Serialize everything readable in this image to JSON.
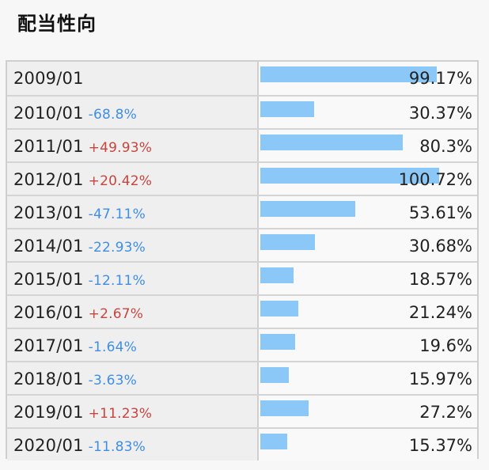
{
  "title": "配当性向",
  "chart_data": {
    "type": "bar",
    "orientation": "horizontal",
    "title": "配当性向",
    "categories": [
      "2009/01",
      "2010/01",
      "2011/01",
      "2012/01",
      "2013/01",
      "2014/01",
      "2015/01",
      "2016/01",
      "2017/01",
      "2018/01",
      "2019/01",
      "2020/01"
    ],
    "values": [
      99.17,
      30.37,
      80.3,
      100.72,
      53.61,
      30.68,
      18.57,
      21.24,
      19.6,
      15.97,
      27.2,
      15.37
    ],
    "value_labels": [
      "99.17%",
      "30.37%",
      "80.3%",
      "100.72%",
      "53.61%",
      "30.68%",
      "18.57%",
      "21.24%",
      "19.6%",
      "15.97%",
      "27.2%",
      "15.37%"
    ],
    "changes": [
      "",
      "-68.8%",
      "+49.93%",
      "+20.42%",
      "-47.11%",
      "-22.93%",
      "-12.11%",
      "+2.67%",
      "-1.64%",
      "-3.63%",
      "+11.23%",
      "-11.83%"
    ],
    "colors": {
      "bar": "#8cc8f7",
      "negative": "#3f8ee6",
      "positive": "#c8453f"
    }
  }
}
